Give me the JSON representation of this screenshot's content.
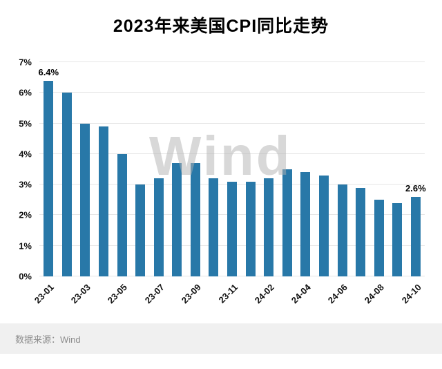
{
  "title": "2023年来美国CPI同比走势",
  "watermark": "Wind",
  "footer": {
    "source_label": "数据来源：Wind"
  },
  "colors": {
    "bar": "#2878a8",
    "grid": "#e4e4e4",
    "footer_bg": "#f0f0f0",
    "footer_text": "#8c8c8c"
  },
  "chart_data": {
    "type": "bar",
    "title": "2023年来美国CPI同比走势",
    "xlabel": "",
    "ylabel": "",
    "ylim": [
      0,
      7
    ],
    "grid": true,
    "legend": false,
    "x": [
      "23-01",
      "23-02",
      "23-03",
      "23-04",
      "23-05",
      "23-06",
      "23-07",
      "23-08",
      "23-09",
      "23-10",
      "23-11",
      "24-01",
      "24-02",
      "24-03",
      "24-04",
      "24-05",
      "24-06",
      "24-07",
      "24-08",
      "24-09",
      "24-10"
    ],
    "values": [
      6.4,
      6.0,
      5.0,
      4.9,
      4.0,
      3.0,
      3.2,
      3.7,
      3.7,
      3.2,
      3.1,
      3.1,
      3.2,
      3.5,
      3.4,
      3.3,
      3.0,
      2.9,
      2.5,
      2.4,
      2.6
    ],
    "visible_x_labels": [
      "23-01",
      "23-03",
      "23-05",
      "23-07",
      "23-09",
      "23-11",
      "24-02",
      "24-04",
      "24-06",
      "24-08",
      "24-10"
    ],
    "y_ticks": [
      "0%",
      "1%",
      "2%",
      "3%",
      "4%",
      "5%",
      "6%",
      "7%"
    ],
    "annotations": [
      {
        "index": 0,
        "text": "6.4%"
      },
      {
        "index": 20,
        "text": "2.6%"
      }
    ]
  }
}
